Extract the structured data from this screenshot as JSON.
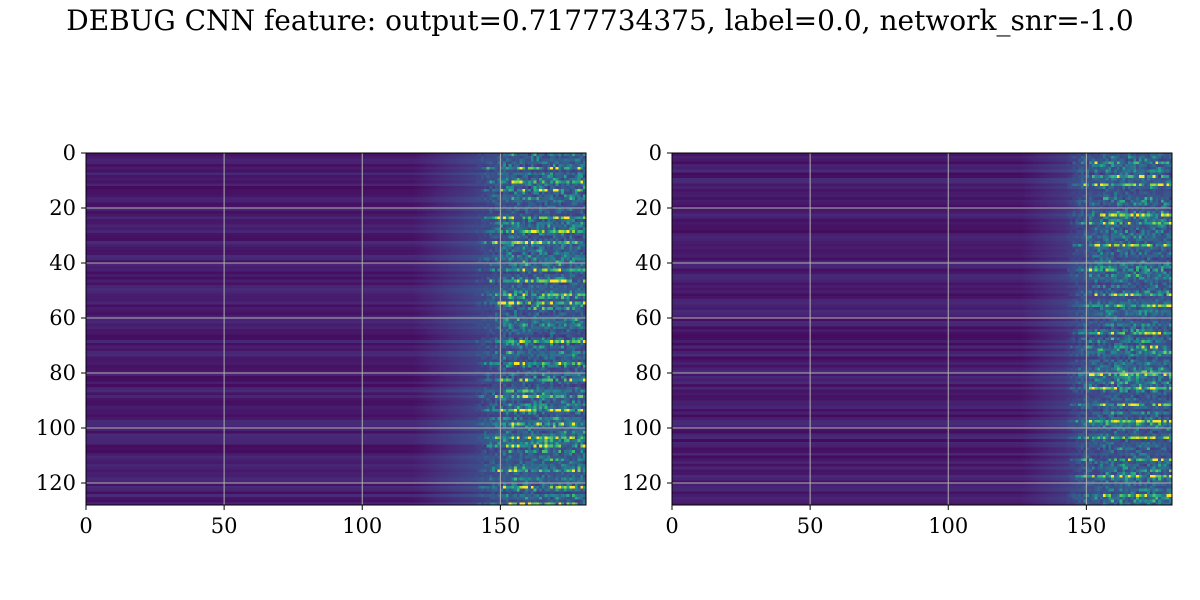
{
  "title": "DEBUG CNN feature: output=0.7177734375, label=0.0, network_snr=-1.0",
  "chart_data": [
    {
      "type": "heatmap",
      "colormap": "viridis",
      "grid": true,
      "xlim": [
        0,
        181
      ],
      "ylim": [
        128,
        0
      ],
      "xticks": [
        0,
        50,
        100,
        150
      ],
      "yticks": [
        0,
        20,
        40,
        60,
        80,
        100,
        120
      ],
      "x_size": 181,
      "y_size": 128,
      "bright_onset_x": 130,
      "noisy_onset_x": 148,
      "peak_rows": [
        5,
        10,
        13,
        23,
        28,
        32,
        42,
        46,
        51,
        54,
        68,
        76,
        82,
        88,
        93,
        98,
        103,
        106,
        115,
        121,
        127
      ]
    },
    {
      "type": "heatmap",
      "colormap": "viridis",
      "grid": true,
      "xlim": [
        0,
        181
      ],
      "ylim": [
        128,
        0
      ],
      "xticks": [
        0,
        50,
        100,
        150
      ],
      "yticks": [
        0,
        20,
        40,
        60,
        80,
        100,
        120
      ],
      "x_size": 181,
      "y_size": 128,
      "bright_onset_x": 138,
      "noisy_onset_x": 150,
      "peak_rows": [
        3,
        8,
        11,
        22,
        25,
        33,
        42,
        51,
        55,
        65,
        70,
        80,
        85,
        91,
        97,
        103,
        111,
        117,
        124
      ]
    }
  ]
}
